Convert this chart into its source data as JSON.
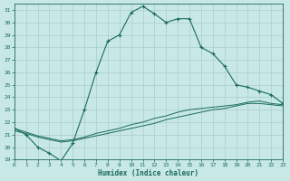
{
  "xlabel": "Humidex (Indice chaleur)",
  "bg_color": "#c8e8e5",
  "grid_color": "#a8cece",
  "line_color": "#1a6b5a",
  "xlim": [
    0,
    23
  ],
  "ylim": [
    19,
    31.5
  ],
  "yticks": [
    19,
    20,
    21,
    22,
    23,
    24,
    25,
    26,
    27,
    28,
    29,
    30,
    31
  ],
  "xticks": [
    0,
    1,
    2,
    3,
    4,
    5,
    6,
    7,
    8,
    9,
    10,
    11,
    12,
    13,
    14,
    15,
    16,
    17,
    18,
    19,
    20,
    21,
    22,
    23
  ],
  "main_x": [
    0,
    1,
    2,
    3,
    4,
    5,
    6,
    7,
    8,
    9,
    10,
    11,
    12,
    13,
    14,
    15,
    16,
    17,
    18,
    19,
    20,
    21,
    22,
    23
  ],
  "main_y": [
    21.5,
    21.0,
    20.0,
    19.5,
    18.9,
    20.3,
    23.0,
    26.0,
    28.5,
    29.0,
    30.8,
    31.3,
    30.7,
    30.0,
    30.3,
    30.3,
    28.0,
    27.5,
    26.5,
    25.0,
    24.8,
    24.5,
    24.2,
    23.5
  ],
  "line2_x": [
    0,
    1,
    2,
    3,
    4,
    5,
    6,
    7,
    8,
    9,
    10,
    11,
    12,
    13,
    14,
    15,
    16,
    17,
    18,
    19,
    20,
    21,
    22,
    23
  ],
  "line2_y": [
    21.3,
    21.1,
    20.8,
    20.6,
    20.4,
    20.5,
    20.7,
    20.9,
    21.1,
    21.3,
    21.5,
    21.7,
    21.9,
    22.2,
    22.4,
    22.6,
    22.8,
    23.0,
    23.1,
    23.3,
    23.5,
    23.5,
    23.4,
    23.3
  ],
  "line3_x": [
    0,
    1,
    2,
    3,
    4,
    5,
    6,
    7,
    8,
    9,
    10,
    11,
    12,
    13,
    14,
    15,
    16,
    17,
    18,
    19,
    20,
    21,
    22,
    23
  ],
  "line3_y": [
    21.5,
    21.2,
    20.9,
    20.7,
    20.5,
    20.6,
    20.8,
    21.1,
    21.3,
    21.5,
    21.8,
    22.0,
    22.3,
    22.5,
    22.8,
    23.0,
    23.1,
    23.2,
    23.3,
    23.4,
    23.6,
    23.7,
    23.5,
    23.4
  ]
}
